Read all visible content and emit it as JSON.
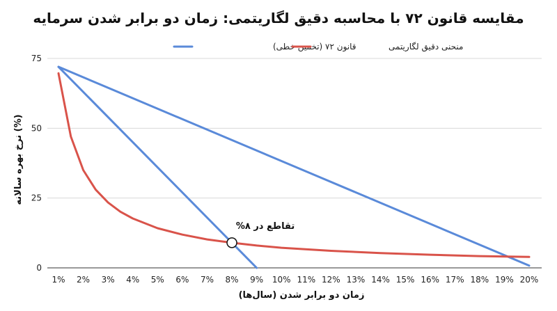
{
  "chart_data": {
    "type": "line",
    "title": "مقایسه قانون ۷۲ با محاسبه دقیق لگاریتمی: زمان دو برابر شدن سرمایه",
    "xlabel": "زمان دو برابر شدن (سال‌ها)",
    "ylabel": "نرخ بهره سالانه (%)",
    "x_categories": [
      "1%",
      "2%",
      "3%",
      "4%",
      "5%",
      "6%",
      "7%",
      "8%",
      "9%",
      "10%",
      "11%",
      "12%",
      "13%",
      "14%",
      "15%",
      "16%",
      "17%",
      "18%",
      "19%",
      "20%"
    ],
    "xlim": [
      1,
      20
    ],
    "ylim": [
      0,
      75
    ],
    "yticks": [
      0,
      25,
      50,
      75
    ],
    "grid": "horizontal",
    "legend_position": "top-center",
    "series": [
      {
        "name": "قانون ۷۲ (تخمین خطی)",
        "color": "#5A8AD9",
        "x": [
          1,
          9,
          1,
          20
        ],
        "y": [
          72,
          0,
          72,
          0.8
        ]
      },
      {
        "name": "منحنی دقیق لگاریتمی",
        "color": "#D9534A",
        "x": [
          1,
          1.5,
          2,
          2.5,
          3,
          3.5,
          4,
          5,
          6,
          7,
          8,
          9,
          10,
          12,
          14,
          16,
          18,
          20
        ],
        "y": [
          69.7,
          47.0,
          35.0,
          28.0,
          23.4,
          20.1,
          17.7,
          14.2,
          11.9,
          10.2,
          9.0,
          8.0,
          7.2,
          6.1,
          5.3,
          4.7,
          4.2,
          3.9
        ]
      }
    ],
    "annotations": [
      {
        "text": "تقاطع در ۸%",
        "x": 8,
        "y": 9
      }
    ]
  }
}
